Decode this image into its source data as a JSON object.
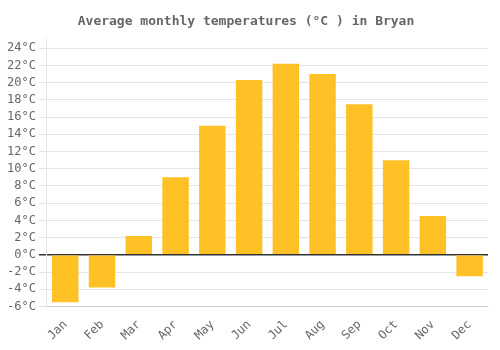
{
  "chart_data": {
    "type": "bar",
    "title": "Average monthly temperatures (°C ) in Bryan",
    "categories": [
      "Jan",
      "Feb",
      "Mar",
      "Apr",
      "May",
      "Jun",
      "Jul",
      "Aug",
      "Sep",
      "Oct",
      "Nov",
      "Dec"
    ],
    "values": [
      -5.5,
      -3.8,
      2.2,
      9.0,
      15.0,
      20.3,
      22.2,
      21.0,
      17.5,
      11.0,
      4.5,
      -2.5
    ],
    "color": "#FFC125",
    "ylim": [
      -6,
      25
    ],
    "yticks": [
      {
        "value": -6,
        "label": "-6°C"
      },
      {
        "value": -4,
        "label": "-4°C"
      },
      {
        "value": -2,
        "label": "-2°C"
      },
      {
        "value": 0,
        "label": "0°C"
      },
      {
        "value": 2,
        "label": "2°C"
      },
      {
        "value": 4,
        "label": "4°C"
      },
      {
        "value": 6,
        "label": "6°C"
      },
      {
        "value": 8,
        "label": "8°C"
      },
      {
        "value": 10,
        "label": "10°C"
      },
      {
        "value": 12,
        "label": "12°C"
      },
      {
        "value": 14,
        "label": "14°C"
      },
      {
        "value": 16,
        "label": "16°C"
      },
      {
        "value": 18,
        "label": "18°C"
      },
      {
        "value": 20,
        "label": "20°C"
      },
      {
        "value": 22,
        "label": "22°C"
      },
      {
        "value": 24,
        "label": "24°C"
      }
    ],
    "grid": true
  }
}
